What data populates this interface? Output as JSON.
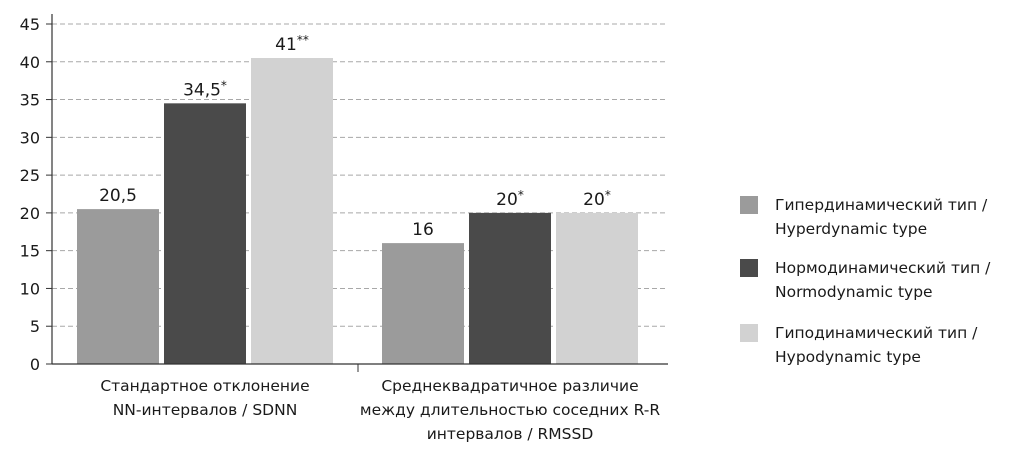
{
  "chart_data": {
    "type": "bar",
    "title": "",
    "xlabel": "",
    "ylabel": "",
    "ylim": [
      0,
      45
    ],
    "yticks": [
      0,
      5,
      10,
      15,
      20,
      25,
      30,
      35,
      40,
      45
    ],
    "grid": "horizontal-dashed",
    "legend_position": "right",
    "categories": [
      [
        "Стандартное отклонение",
        "NN-интервалов / SDNN"
      ],
      [
        "Среднеквадратичное различие",
        "между длительностью соседних R-R",
        "интервалов / RMSSD"
      ]
    ],
    "series": [
      {
        "name": [
          "Гипердинамический тип /",
          "Hyperdynamic type"
        ],
        "color": "#9b9b9b",
        "values": [
          20.5,
          16
        ],
        "labels": [
          "20,5",
          "16"
        ]
      },
      {
        "name": [
          "Нормодинамический тип /",
          "Normodynamic type"
        ],
        "color": "#4a4a4a",
        "values": [
          34.5,
          20
        ],
        "labels": [
          "34,5*",
          "20*"
        ]
      },
      {
        "name": [
          "Гиподинамический тип /",
          "Hypodynamic type"
        ],
        "color": "#d2d2d2",
        "values": [
          40.5,
          20
        ],
        "labels": [
          "41**",
          "20*"
        ]
      }
    ]
  }
}
